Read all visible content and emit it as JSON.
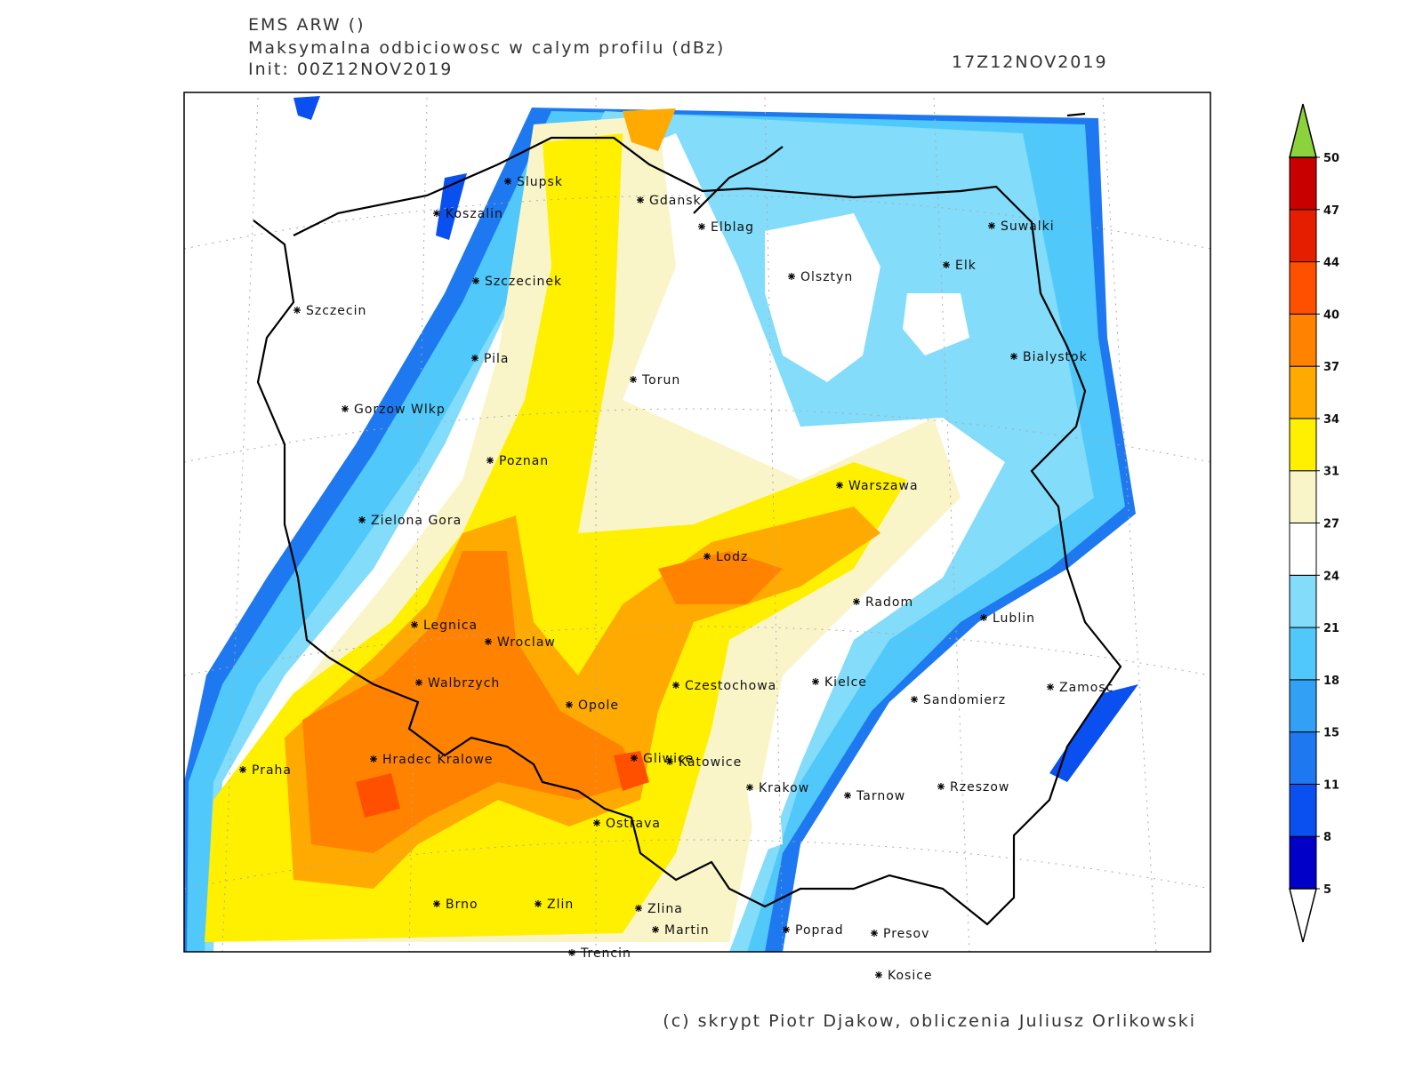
{
  "header": {
    "model": "EMS ARW ()",
    "field": "Maksymalna odbiciowosc w calym profilu (dBz)",
    "init": "Init: 00Z12NOV2019",
    "valid": "17Z12NOV2019"
  },
  "cities": [
    "Slupsk",
    "Koszalin",
    "Gdansk",
    "Elblag",
    "Suwalki",
    "Elk",
    "Olsztyn",
    "Szczecinek",
    "Szczecin",
    "Bialystok",
    "Pila",
    "Torun",
    "Gorzow Wlkp",
    "Poznan",
    "Warszawa",
    "Zielona Gora",
    "Lodz",
    "Radom",
    "Lublin",
    "Legnica",
    "Wroclaw",
    "Walbrzych",
    "Czestochowa",
    "Kielce",
    "Zamosc",
    "Sandomierz",
    "Opole",
    "Gliwice",
    "Katowice",
    "Praha",
    "Hradec Kralowe",
    "Krakow",
    "Rzeszow",
    "Tarnow",
    "Ostrava",
    "Brno",
    "Zlin",
    "Zlina",
    "Martin",
    "Poprad",
    "Presov",
    "Trencin",
    "Kosice"
  ],
  "colorbar": {
    "levels": [
      5,
      8,
      11,
      15,
      18,
      21,
      24,
      27,
      31,
      34,
      37,
      40,
      44,
      47,
      50
    ],
    "colors": [
      "#0000c8",
      "#0a50f0",
      "#1e78f0",
      "#32a0f5",
      "#50c8fa",
      "#82dcfa",
      "#ffffff",
      "#faf5c8",
      "#fff000",
      "#ffaa00",
      "#ff8200",
      "#ff5000",
      "#e61e00",
      "#c80000"
    ],
    "over_color": "#8cd23c",
    "under_color": "#ffffff"
  },
  "footer": "(c) skrypt Piotr Djakow, obliczenia Juliusz Orlikowski"
}
